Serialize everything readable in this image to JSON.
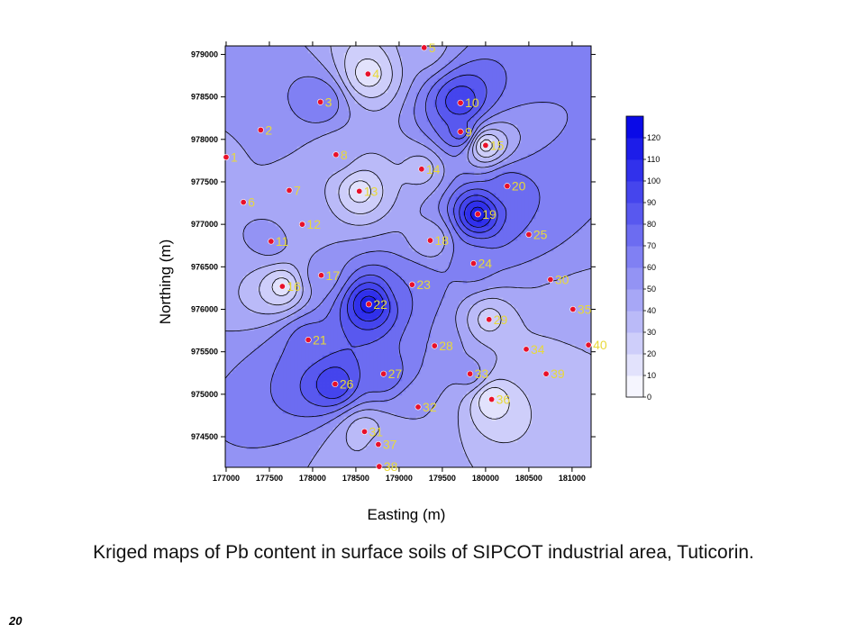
{
  "caption": "Kriged maps of Pb content in surface soils of SIPCOT industrial area, Tuticorin.",
  "page_number": "20",
  "colors": {
    "low": "#ffffff",
    "high": "#0000e6",
    "contour": "#000000",
    "point": "#e8102a",
    "label": "#e8d93a"
  },
  "chart_data": {
    "type": "contour",
    "xlabel": "Easting (m)",
    "ylabel": "Northing (m)",
    "xlim": [
      176990,
      181220
    ],
    "ylim": [
      974140,
      979100
    ],
    "x_ticks": [
      177000,
      177500,
      178000,
      178500,
      179000,
      179500,
      180000,
      180500,
      181000
    ],
    "y_ticks": [
      974500,
      975000,
      975500,
      976000,
      976500,
      977000,
      977500,
      978000,
      978500,
      979000
    ],
    "legend": {
      "placement": "right",
      "levels": [
        0,
        10,
        20,
        30,
        40,
        50,
        60,
        70,
        80,
        90,
        100,
        110,
        120
      ],
      "max": 130
    },
    "points": [
      {
        "id": "1",
        "x": 177000,
        "y": 977790,
        "v": 45
      },
      {
        "id": "2",
        "x": 177400,
        "y": 978110,
        "v": 60
      },
      {
        "id": "3",
        "x": 178090,
        "y": 978440,
        "v": 70
      },
      {
        "id": "4",
        "x": 178640,
        "y": 978770,
        "v": 15
      },
      {
        "id": "5",
        "x": 179290,
        "y": 979080,
        "v": 45
      },
      {
        "id": "6",
        "x": 177200,
        "y": 977260,
        "v": 50
      },
      {
        "id": "7",
        "x": 177730,
        "y": 977400,
        "v": 45
      },
      {
        "id": "8",
        "x": 178270,
        "y": 977820,
        "v": 45
      },
      {
        "id": "9",
        "x": 179710,
        "y": 978090,
        "v": 85
      },
      {
        "id": "10",
        "x": 179710,
        "y": 978430,
        "v": 100
      },
      {
        "id": "11",
        "x": 177520,
        "y": 976800,
        "v": 55
      },
      {
        "id": "12",
        "x": 177880,
        "y": 977000,
        "v": 45
      },
      {
        "id": "13",
        "x": 178540,
        "y": 977390,
        "v": 15
      },
      {
        "id": "14",
        "x": 179260,
        "y": 977650,
        "v": 35
      },
      {
        "id": "15",
        "x": 180000,
        "y": 977930,
        "v": 15
      },
      {
        "id": "16",
        "x": 177650,
        "y": 976270,
        "v": 15
      },
      {
        "id": "17",
        "x": 178100,
        "y": 976400,
        "v": 55
      },
      {
        "id": "18",
        "x": 179360,
        "y": 976810,
        "v": 40
      },
      {
        "id": "19",
        "x": 179910,
        "y": 977120,
        "v": 115
      },
      {
        "id": "20",
        "x": 180250,
        "y": 977450,
        "v": 75
      },
      {
        "id": "21",
        "x": 177950,
        "y": 975640,
        "v": 75
      },
      {
        "id": "22",
        "x": 178650,
        "y": 976060,
        "v": 115
      },
      {
        "id": "23",
        "x": 179150,
        "y": 976290,
        "v": 70
      },
      {
        "id": "24",
        "x": 179860,
        "y": 976540,
        "v": 65
      },
      {
        "id": "25",
        "x": 180500,
        "y": 976880,
        "v": 70
      },
      {
        "id": "26",
        "x": 178260,
        "y": 975120,
        "v": 100
      },
      {
        "id": "27",
        "x": 178820,
        "y": 975240,
        "v": 80
      },
      {
        "id": "28",
        "x": 179410,
        "y": 975570,
        "v": 60
      },
      {
        "id": "29",
        "x": 180040,
        "y": 975880,
        "v": 25
      },
      {
        "id": "30",
        "x": 180750,
        "y": 976350,
        "v": 50
      },
      {
        "id": "31",
        "x": 178600,
        "y": 974560,
        "v": 30
      },
      {
        "id": "32",
        "x": 179220,
        "y": 974850,
        "v": 50
      },
      {
        "id": "33",
        "x": 179820,
        "y": 975240,
        "v": 55
      },
      {
        "id": "34",
        "x": 180470,
        "y": 975530,
        "v": 40
      },
      {
        "id": "35",
        "x": 181010,
        "y": 976000,
        "v": 45
      },
      {
        "id": "36",
        "x": 180070,
        "y": 974940,
        "v": 10
      },
      {
        "id": "37",
        "x": 178760,
        "y": 974410,
        "v": 45
      },
      {
        "id": "38",
        "x": 178770,
        "y": 974150,
        "v": 40
      },
      {
        "id": "39",
        "x": 180700,
        "y": 975240,
        "v": 30
      },
      {
        "id": "40",
        "x": 181190,
        "y": 975580,
        "v": 40
      }
    ]
  }
}
